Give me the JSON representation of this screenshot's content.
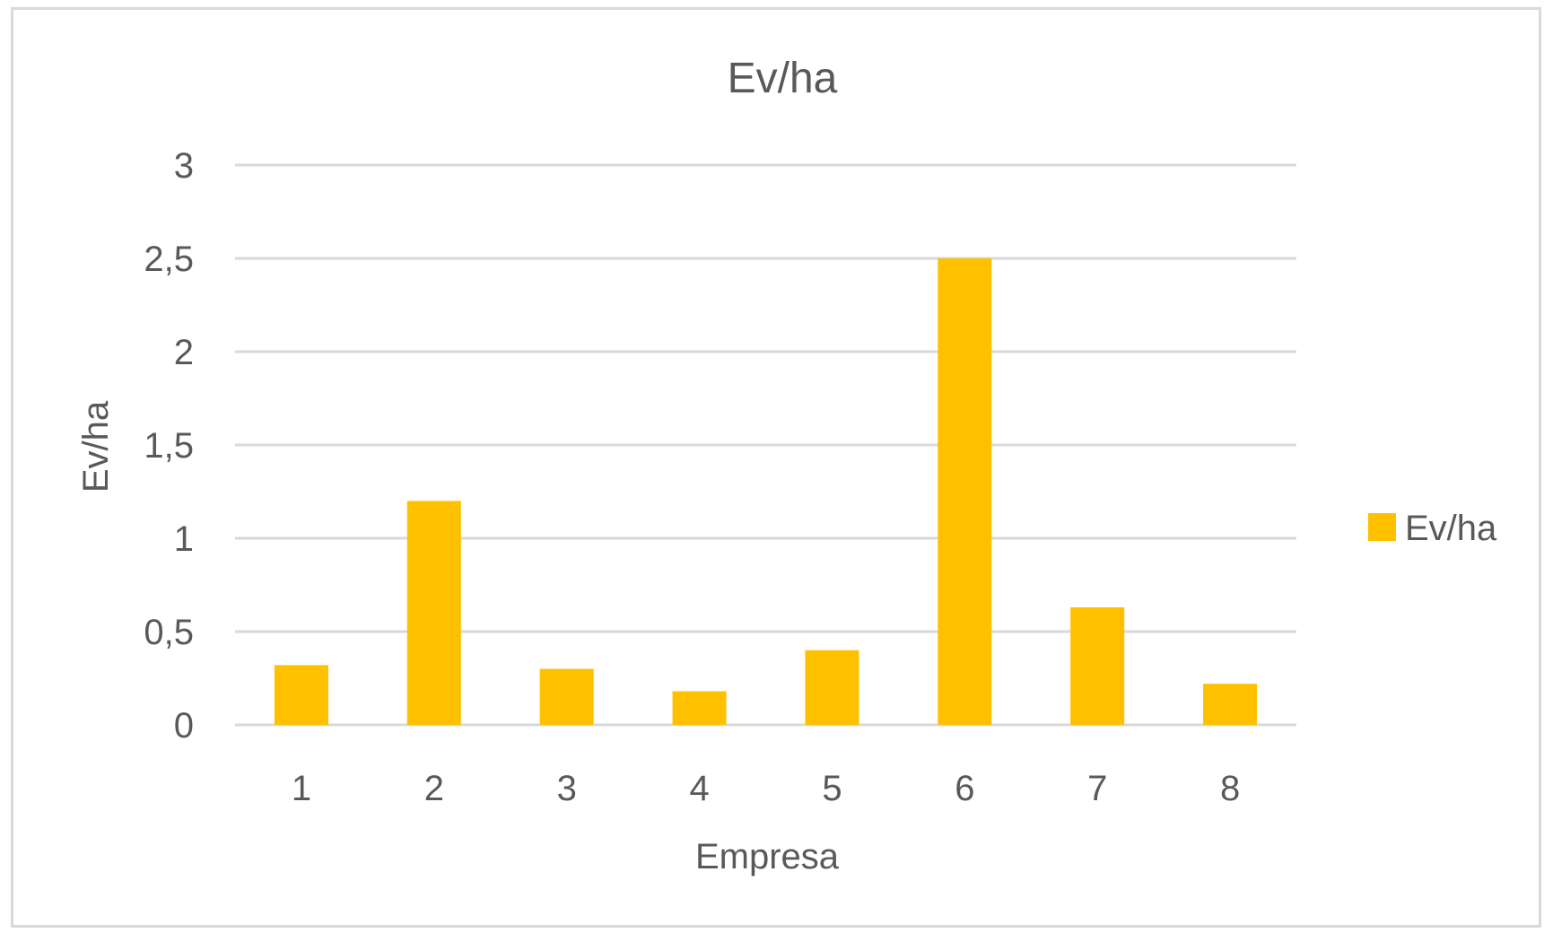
{
  "chart_data": {
    "type": "bar",
    "title": "Ev/ha",
    "xlabel": "Empresa",
    "ylabel": "Ev/ha",
    "categories": [
      "1",
      "2",
      "3",
      "4",
      "5",
      "6",
      "7",
      "8"
    ],
    "series": [
      {
        "name": "Ev/ha",
        "color": "#FFC000",
        "values": [
          0.32,
          1.2,
          0.3,
          0.18,
          0.4,
          2.5,
          0.63,
          0.22
        ]
      }
    ],
    "ylim": [
      0,
      3
    ],
    "yticks": [
      "0",
      "0,5",
      "1",
      "1,5",
      "2",
      "2,5",
      "3"
    ],
    "ytick_values": [
      0,
      0.5,
      1,
      1.5,
      2,
      2.5,
      3
    ],
    "grid": true,
    "legend_position": "right"
  }
}
